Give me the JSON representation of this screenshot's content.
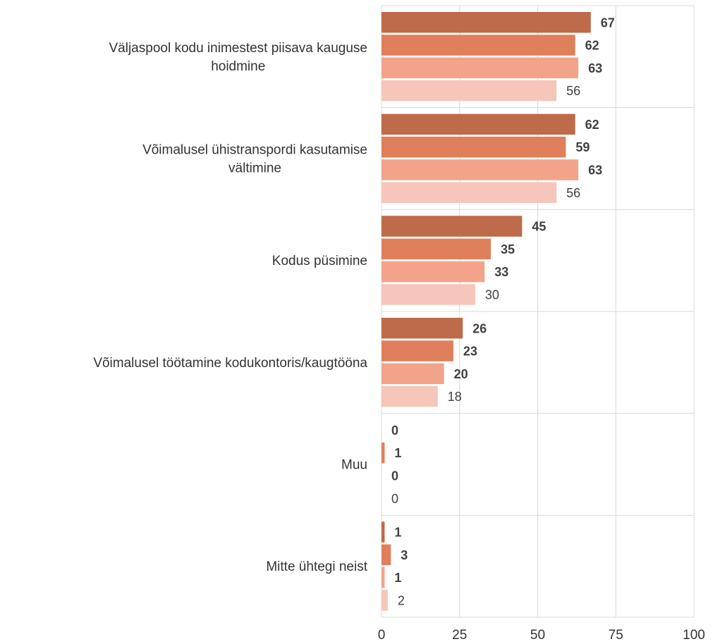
{
  "chart_data": {
    "type": "bar",
    "orientation": "horizontal",
    "categories": [
      "Väljaspool kodu inimestest piisava kauguse hoidmine",
      "Võimalusel ühistranspordi kasutamise vältimine",
      "Kodus püsimine",
      "Võimalusel töötamine kodukontoris/kaugtööna",
      "Muu",
      "Mitte ühtegi neist"
    ],
    "series": [
      {
        "values": [
          67,
          62,
          45,
          26,
          0,
          1
        ],
        "color": "#bd6b4a",
        "label_bold": true
      },
      {
        "values": [
          62,
          59,
          35,
          23,
          1,
          3
        ],
        "color": "#e07f5b",
        "label_bold": true
      },
      {
        "values": [
          63,
          63,
          33,
          20,
          0,
          1
        ],
        "color": "#f2a38a",
        "label_bold": true
      },
      {
        "values": [
          56,
          56,
          30,
          18,
          0,
          2
        ],
        "color": "#f6c6ba",
        "label_bold": false
      }
    ],
    "xlim": [
      0,
      100
    ],
    "xticks": [
      0,
      25,
      50,
      75,
      100
    ],
    "grid": true,
    "legend": false
  }
}
